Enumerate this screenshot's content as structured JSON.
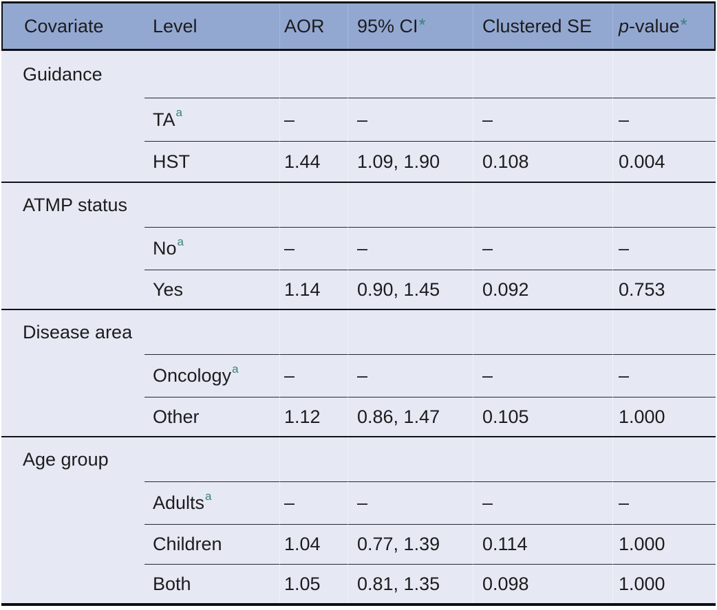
{
  "page": {
    "background": "#ffffff"
  },
  "table": {
    "style": {
      "header_bg": "#93a8d1",
      "body_bg": "#e6e9f3",
      "accent_teal": "#3a7f7d",
      "text_color": "#1c1c1e",
      "rule_color": "#101115"
    },
    "header": {
      "covariate": "Covariate",
      "level": "Level",
      "aor": "AOR",
      "ci": "95% CI",
      "ci_marker": "*",
      "se": "Clustered SE",
      "p_prefix": "p",
      "p_suffix": "-value",
      "p_marker": "*"
    },
    "groups": [
      {
        "name": "Guidance",
        "rows": [
          {
            "level": "TA",
            "marker": "a",
            "aor": "–",
            "ci": "–",
            "se": "–",
            "p": "–"
          },
          {
            "level": "HST",
            "marker": "",
            "aor": "1.44",
            "ci": "1.09, 1.90",
            "se": "0.108",
            "p": "0.004"
          }
        ]
      },
      {
        "name": "ATMP status",
        "rows": [
          {
            "level": "No",
            "marker": "a",
            "aor": "–",
            "ci": "–",
            "se": "–",
            "p": "–"
          },
          {
            "level": "Yes",
            "marker": "",
            "aor": "1.14",
            "ci": "0.90, 1.45",
            "se": "0.092",
            "p": "0.753"
          }
        ]
      },
      {
        "name": "Disease area",
        "rows": [
          {
            "level": "Oncology",
            "marker": "a",
            "aor": "–",
            "ci": "–",
            "se": "–",
            "p": "–"
          },
          {
            "level": "Other",
            "marker": "",
            "aor": "1.12",
            "ci": "0.86, 1.47",
            "se": "0.105",
            "p": "1.000"
          }
        ]
      },
      {
        "name": "Age group",
        "rows": [
          {
            "level": "Adults",
            "marker": "a",
            "aor": "–",
            "ci": "–",
            "se": "–",
            "p": "–"
          },
          {
            "level": "Children",
            "marker": "",
            "aor": "1.04",
            "ci": "0.77, 1.39",
            "se": "0.114",
            "p": "1.000"
          },
          {
            "level": "Both",
            "marker": "",
            "aor": "1.05",
            "ci": "0.81, 1.35",
            "se": "0.098",
            "p": "1.000"
          }
        ]
      }
    ]
  }
}
